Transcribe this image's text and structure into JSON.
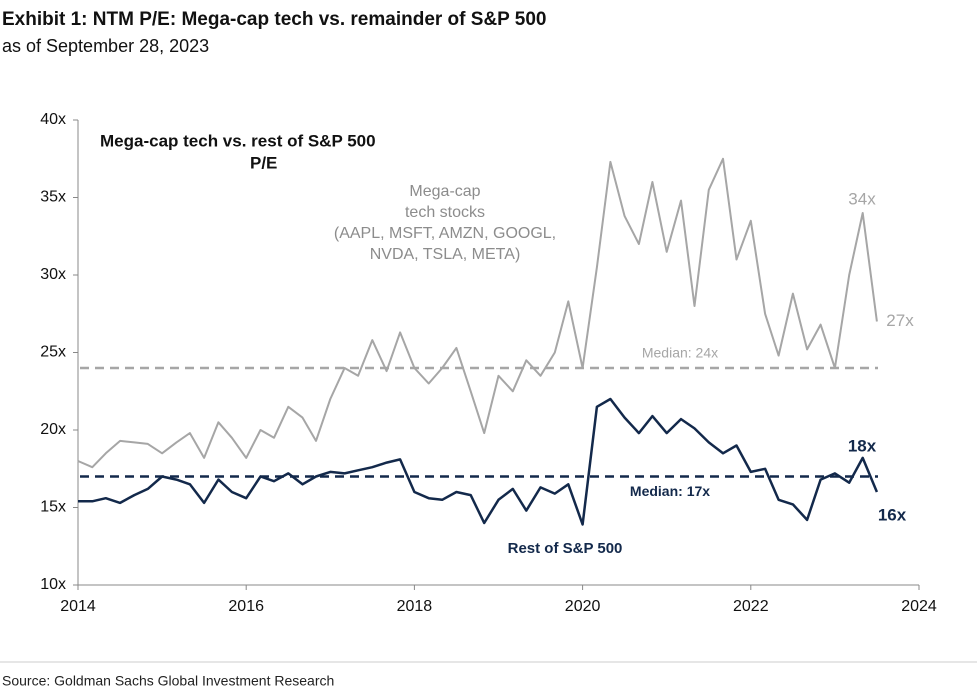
{
  "chart_data": {
    "type": "line",
    "title": "Exhibit 1: NTM P/E: Mega-cap tech vs. remainder of S&P 500",
    "subtitle": "as of September 28, 2023",
    "inner_title": [
      "Mega-cap tech vs. rest of S&P 500",
      "P/E"
    ],
    "source": "Source: Goldman Sachs Global Investment Research",
    "x": [
      2014.0,
      2014.17,
      2014.33,
      2014.5,
      2014.67,
      2014.83,
      2015.0,
      2015.17,
      2015.33,
      2015.5,
      2015.67,
      2015.83,
      2016.0,
      2016.17,
      2016.33,
      2016.5,
      2016.67,
      2016.83,
      2017.0,
      2017.17,
      2017.33,
      2017.5,
      2017.67,
      2017.83,
      2018.0,
      2018.17,
      2018.33,
      2018.5,
      2018.67,
      2018.83,
      2019.0,
      2019.17,
      2019.33,
      2019.5,
      2019.67,
      2019.83,
      2020.0,
      2020.17,
      2020.33,
      2020.5,
      2020.67,
      2020.83,
      2021.0,
      2021.17,
      2021.33,
      2021.5,
      2021.67,
      2021.83,
      2022.0,
      2022.17,
      2022.33,
      2022.5,
      2022.67,
      2022.83,
      2023.0,
      2023.17,
      2023.33,
      2023.5
    ],
    "series": [
      {
        "label": [
          "Mega-cap",
          "tech stocks",
          "(AAPL, MSFT, AMZN, GOOGL,",
          "NVDA, TSLA, META)"
        ],
        "color": "#a6a6a6",
        "values": [
          18.0,
          17.6,
          18.5,
          19.3,
          19.2,
          19.1,
          18.5,
          19.2,
          19.8,
          18.2,
          20.5,
          19.5,
          18.2,
          20.0,
          19.5,
          21.5,
          20.8,
          19.3,
          22.0,
          24.0,
          23.5,
          25.8,
          23.8,
          26.3,
          24.0,
          23.0,
          24.0,
          25.3,
          22.5,
          19.8,
          23.5,
          22.5,
          24.5,
          23.5,
          25.0,
          28.3,
          24.0,
          30.5,
          37.3,
          33.8,
          32.0,
          36.0,
          31.5,
          34.8,
          28.0,
          35.5,
          37.5,
          31.0,
          33.5,
          27.5,
          24.8,
          28.8,
          25.2,
          26.8,
          24.0,
          30.0,
          34.0,
          27.0
        ]
      },
      {
        "label": [
          "Rest of S&P 500"
        ],
        "color": "#13294b",
        "values": [
          15.4,
          15.4,
          15.6,
          15.3,
          15.8,
          16.2,
          17.0,
          16.8,
          16.5,
          15.3,
          16.8,
          16.0,
          15.6,
          17.0,
          16.7,
          17.2,
          16.5,
          17.0,
          17.3,
          17.2,
          17.4,
          17.6,
          17.9,
          18.1,
          16.0,
          15.6,
          15.5,
          16.0,
          15.8,
          14.0,
          15.5,
          16.2,
          14.8,
          16.3,
          15.9,
          16.5,
          13.9,
          21.5,
          22.0,
          20.8,
          19.8,
          20.9,
          19.8,
          20.7,
          20.1,
          19.2,
          18.5,
          19.0,
          17.3,
          17.5,
          15.5,
          15.2,
          14.2,
          16.8,
          17.2,
          16.6,
          18.2,
          16.0
        ]
      }
    ],
    "reference_lines": [
      {
        "label": "Median: 24x",
        "value": 24,
        "color": "#a6a6a6"
      },
      {
        "label": "Median: 17x",
        "value": 17,
        "color": "#13294b"
      }
    ],
    "annotations": [
      {
        "text": "34x",
        "value": 34,
        "color": "#a6a6a6"
      },
      {
        "text": "27x",
        "value": 27,
        "color": "#a6a6a6"
      },
      {
        "text": "18x",
        "value": 18,
        "color": "#13294b"
      },
      {
        "text": "16x",
        "value": 16,
        "color": "#13294b"
      }
    ],
    "xlim": [
      2014,
      2024
    ],
    "xticks": [
      2014,
      2016,
      2018,
      2020,
      2022,
      2024
    ],
    "ylim": [
      10,
      40
    ],
    "yticks": [
      {
        "value": 10,
        "label": "10x"
      },
      {
        "value": 15,
        "label": "15x"
      },
      {
        "value": 20,
        "label": "20x"
      },
      {
        "value": 25,
        "label": "25x"
      },
      {
        "value": 30,
        "label": "30x"
      },
      {
        "value": 35,
        "label": "35x"
      },
      {
        "value": 40,
        "label": "40x"
      }
    ]
  }
}
